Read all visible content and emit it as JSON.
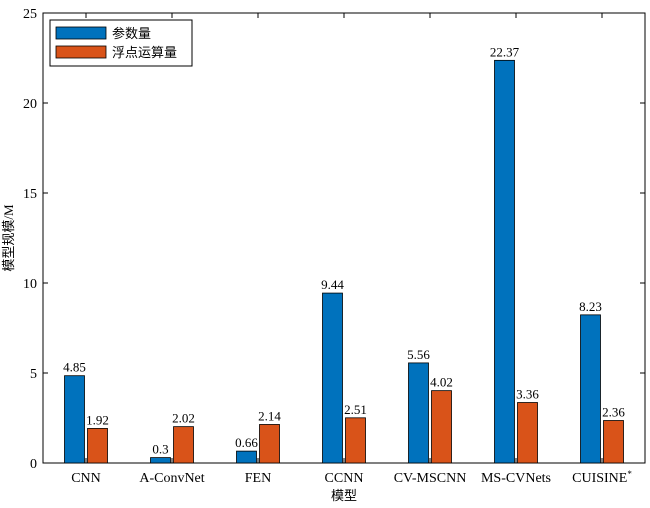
{
  "chart_data": {
    "type": "bar",
    "categories": [
      "CNN",
      "A-ConvNet",
      "FEN",
      "CCNN",
      "CV-MSCNN",
      "MS-CVNets",
      "CUISINE*"
    ],
    "series": [
      {
        "name": "参数量",
        "color": "#0072BD",
        "values": [
          4.85,
          0.3,
          0.66,
          9.44,
          5.56,
          22.37,
          8.23
        ]
      },
      {
        "name": "浮点运算量",
        "color": "#D95319",
        "values": [
          1.92,
          2.02,
          2.14,
          2.51,
          4.02,
          3.36,
          2.36
        ]
      }
    ],
    "xlabel": "模型",
    "ylabel": "模型规模/M",
    "ylim": [
      0,
      25
    ],
    "yticks": [
      0,
      5,
      10,
      15,
      20,
      25
    ],
    "legend_position": "top-left",
    "grid": false
  }
}
